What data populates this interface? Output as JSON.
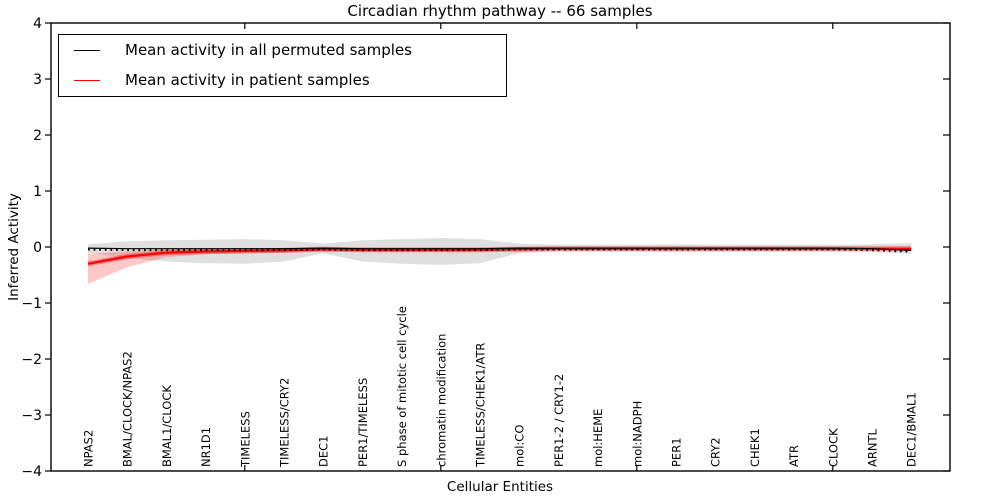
{
  "chart_data": {
    "type": "line",
    "title": "Circadian rhythm pathway -- 66 samples",
    "xlabel": "Cellular Entities",
    "ylabel": "Inferred Activity",
    "ylim": [
      -4,
      4
    ],
    "yticks": [
      -4,
      -3,
      -2,
      -1,
      0,
      1,
      2,
      3,
      4
    ],
    "grid": false,
    "legend_position": "upper-left",
    "categories": [
      "NPAS2",
      "BMAL/CLOCK/NPAS2",
      "BMAL1/CLOCK",
      "NR1D1",
      "TIMELESS",
      "TIMELESS/CRY2",
      "DEC1",
      "PER1/TIMELESS",
      "S phase of mitotic cell cycle",
      "chromatin modification",
      "TIMELESS/CHEK1/ATR",
      "mol:CO",
      "PER1-2 / CRY1-2",
      "mol:HEME",
      "mol:NADPH",
      "PER1",
      "CRY2",
      "CHEK1",
      "ATR",
      "CLOCK",
      "ARNTL",
      "DEC1/BMAL1"
    ],
    "series": [
      {
        "name": "Mean activity in all permuted samples",
        "color": "#000000",
        "style": "solid-with-dots",
        "values": [
          -0.02,
          -0.03,
          -0.03,
          -0.03,
          -0.03,
          -0.03,
          -0.02,
          -0.03,
          -0.03,
          -0.03,
          -0.03,
          -0.02,
          -0.02,
          -0.02,
          -0.02,
          -0.02,
          -0.02,
          -0.02,
          -0.02,
          -0.02,
          -0.03,
          -0.06
        ]
      },
      {
        "name": "Mean activity in patient samples",
        "color": "#ff0000",
        "style": "solid",
        "values": [
          -0.3,
          -0.17,
          -0.1,
          -0.08,
          -0.07,
          -0.06,
          -0.04,
          -0.05,
          -0.05,
          -0.05,
          -0.05,
          -0.04,
          -0.03,
          -0.03,
          -0.03,
          -0.03,
          -0.03,
          -0.03,
          -0.03,
          -0.03,
          -0.03,
          -0.03
        ]
      }
    ],
    "bands": [
      {
        "name": "permuted-samples-range",
        "color": "#808080",
        "opacity": 0.25,
        "top": [
          0.05,
          0.1,
          0.12,
          0.13,
          0.14,
          0.12,
          0.06,
          0.12,
          0.14,
          0.16,
          0.14,
          0.06,
          0.04,
          0.04,
          0.04,
          0.05,
          0.04,
          0.04,
          0.04,
          0.04,
          0.05,
          0.07
        ],
        "bottom": [
          -0.1,
          -0.2,
          -0.26,
          -0.29,
          -0.3,
          -0.26,
          -0.11,
          -0.26,
          -0.3,
          -0.32,
          -0.29,
          -0.11,
          -0.08,
          -0.08,
          -0.08,
          -0.09,
          -0.08,
          -0.08,
          -0.08,
          -0.08,
          -0.09,
          -0.12
        ]
      },
      {
        "name": "patient-samples-range",
        "color": "#ff0000",
        "opacity": 0.22,
        "top": [
          -0.12,
          -0.08,
          -0.04,
          -0.03,
          -0.02,
          -0.02,
          -0.01,
          -0.02,
          -0.02,
          -0.02,
          -0.02,
          -0.01,
          -0.01,
          -0.01,
          -0.01,
          -0.01,
          -0.01,
          -0.01,
          -0.01,
          -0.01,
          -0.01,
          -0.01
        ],
        "bottom": [
          -0.66,
          -0.36,
          -0.18,
          -0.13,
          -0.11,
          -0.1,
          -0.07,
          -0.09,
          -0.09,
          -0.09,
          -0.08,
          -0.06,
          -0.05,
          -0.05,
          -0.05,
          -0.05,
          -0.05,
          -0.05,
          -0.05,
          -0.05,
          -0.05,
          -0.06
        ]
      }
    ]
  }
}
